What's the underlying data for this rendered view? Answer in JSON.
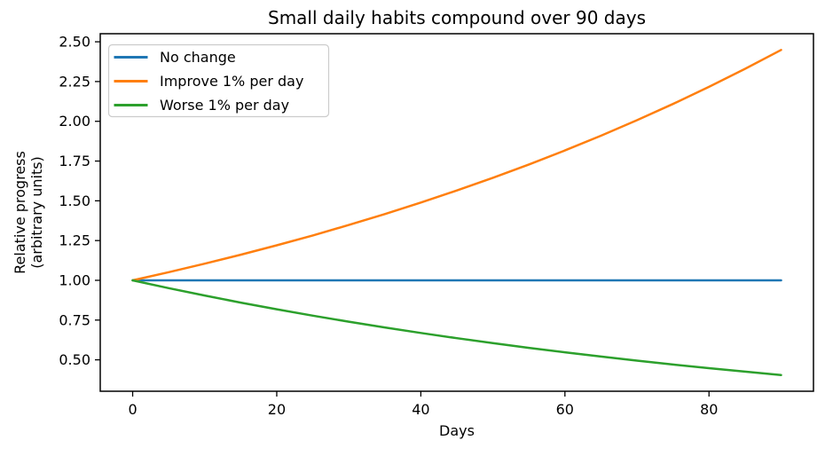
{
  "chart_data": {
    "type": "line",
    "title": "Small daily habits compound over 90 days",
    "xlabel": "Days",
    "ylabel_lines": [
      "Relative progress",
      "(arbitrary units)"
    ],
    "x": [
      0,
      5,
      10,
      15,
      20,
      25,
      30,
      35,
      40,
      45,
      50,
      55,
      60,
      65,
      70,
      75,
      80,
      85,
      90
    ],
    "series": [
      {
        "name": "No change",
        "color": "#1f77b4",
        "values": [
          1.0,
          1.0,
          1.0,
          1.0,
          1.0,
          1.0,
          1.0,
          1.0,
          1.0,
          1.0,
          1.0,
          1.0,
          1.0,
          1.0,
          1.0,
          1.0,
          1.0,
          1.0,
          1.0
        ]
      },
      {
        "name": "Improve 1% per day",
        "color": "#ff7f0e",
        "values": [
          1.0,
          1.051,
          1.1046,
          1.161,
          1.2202,
          1.2824,
          1.3478,
          1.4166,
          1.4889,
          1.5648,
          1.6446,
          1.7285,
          1.8167,
          1.9094,
          2.0068,
          2.1091,
          2.2167,
          2.3298,
          2.4486
        ]
      },
      {
        "name": "Worse 1% per day",
        "color": "#2ca02c",
        "values": [
          1.0,
          0.951,
          0.9044,
          0.8601,
          0.8179,
          0.7778,
          0.7397,
          0.7034,
          0.669,
          0.6362,
          0.605,
          0.5754,
          0.5472,
          0.5204,
          0.4948,
          0.4706,
          0.4475,
          0.4256,
          0.4047
        ]
      }
    ],
    "xlim": [
      -4.5,
      94.5
    ],
    "ylim": [
      0.3025,
      2.5508
    ],
    "xticks": [
      0,
      20,
      40,
      60,
      80
    ],
    "xtick_labels": [
      "0",
      "20",
      "40",
      "60",
      "80"
    ],
    "yticks": [
      0.5,
      0.75,
      1.0,
      1.25,
      1.5,
      1.75,
      2.0,
      2.25,
      2.5
    ],
    "ytick_labels": [
      "0.50",
      "0.75",
      "1.00",
      "1.25",
      "1.50",
      "1.75",
      "2.00",
      "2.25",
      "2.50"
    ],
    "legend_position": "upper left",
    "grid": false,
    "colors": {
      "background": "#ffffff",
      "spine": "#000000",
      "legend_border": "#cccccc",
      "legend_background": "#ffffff"
    }
  }
}
